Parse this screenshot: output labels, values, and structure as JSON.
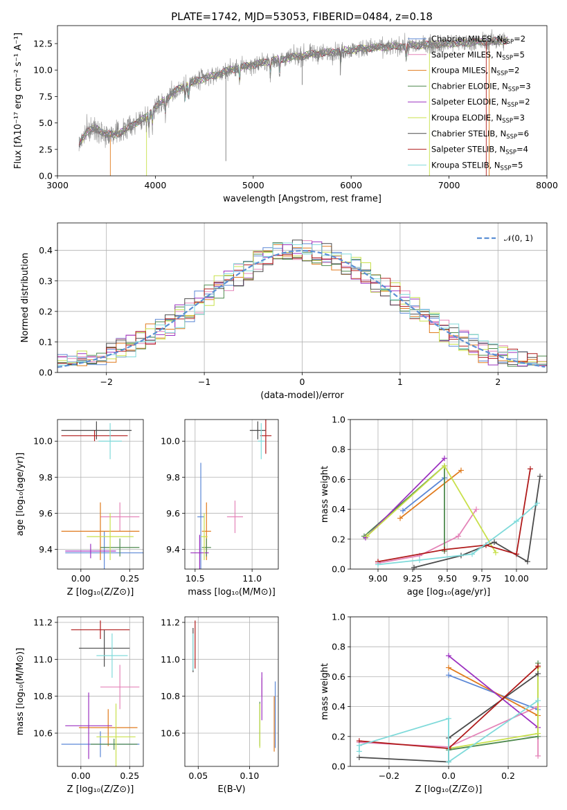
{
  "figure_title": "PLATE=1742, MJD=53053, FIBERID=0484, z=0.18",
  "colors": {
    "Chabrier MILES": "#5b87d6",
    "Salpeter MILES": "#e484b8",
    "Kroupa MILES": "#e07a1c",
    "Chabrier ELODIE": "#4f8a4f",
    "Salpeter ELODIE": "#9b30c0",
    "Kroupa ELODIE": "#c8e04a",
    "Chabrier STELIB": "#4a4a4a",
    "Salpeter STELIB": "#b01a1a",
    "Kroupa STELIB": "#7fdada",
    "normal": "#5b8fd4",
    "data": "#808080"
  },
  "chart_data": [
    {
      "id": "spectrum",
      "type": "line",
      "title": "PLATE=1742, MJD=53053, FIBERID=0484, z=0.18",
      "xlabel": "wavelength [Angstrom, rest frame]",
      "ylabel": "Flux [fλ10⁻¹⁷ erg cm⁻² s⁻¹ A⁻¹]",
      "xlim": [
        3000,
        8000
      ],
      "ylim": [
        0,
        14.2
      ],
      "xticks": [
        "3000",
        "4000",
        "5000",
        "6000",
        "7000",
        "8000"
      ],
      "yticks": [
        "0.0",
        "2.5",
        "5.0",
        "7.5",
        "10.0",
        "12.5"
      ],
      "legend_position": "top-right",
      "continuum_points": {
        "x": [
          3220,
          3300,
          3400,
          3500,
          3600,
          3700,
          3800,
          3900,
          4000,
          4100,
          4200,
          4300,
          4400,
          4600,
          4800,
          5000,
          5200,
          5400,
          5600,
          5800,
          6000,
          6200,
          6400,
          6600,
          6800,
          7000,
          7200,
          7400,
          7600
        ],
        "y": [
          3.0,
          4.2,
          4.5,
          3.9,
          3.9,
          4.4,
          5.0,
          5.5,
          6.5,
          7.2,
          8.0,
          8.5,
          8.9,
          9.5,
          10.1,
          10.5,
          10.9,
          11.2,
          11.5,
          11.7,
          11.9,
          12.1,
          12.2,
          12.3,
          12.4,
          12.5,
          12.6,
          12.7,
          12.8
        ]
      },
      "legend": [
        {
          "model": "Chabrier MILES",
          "label": "Chabrier MILES, N",
          "nssp": "=2"
        },
        {
          "model": "Salpeter MILES",
          "label": "Salpeter MILES, N",
          "nssp": "=5"
        },
        {
          "model": "Kroupa MILES",
          "label": "Kroupa MILES, N",
          "nssp": "=2"
        },
        {
          "model": "Chabrier ELODIE",
          "label": "Chabrier ELODIE, N",
          "nssp": "=3"
        },
        {
          "model": "Salpeter ELODIE",
          "label": "Salpeter ELODIE, N",
          "nssp": "=2"
        },
        {
          "model": "Kroupa ELODIE",
          "label": "Kroupa ELODIE, N",
          "nssp": "=3"
        },
        {
          "model": "Chabrier STELIB",
          "label": "Chabrier STELIB, N",
          "nssp": "=6"
        },
        {
          "model": "Salpeter STELIB",
          "label": "Salpeter STELIB, N",
          "nssp": "=4"
        },
        {
          "model": "Kroupa STELIB",
          "label": "Kroupa STELIB, N",
          "nssp": "=5"
        }
      ],
      "legend_subscript": "SSP"
    },
    {
      "id": "residuals",
      "type": "bar",
      "xlabel": "(data-model)/error",
      "ylabel": "Normed distribution",
      "xlim": [
        -2.5,
        2.5
      ],
      "ylim": [
        0,
        0.49
      ],
      "xticks": [
        "−2",
        "−1",
        "0",
        "1",
        "2"
      ],
      "yticks": [
        "0.0",
        "0.1",
        "0.2",
        "0.3",
        "0.4"
      ],
      "legend_label": "𝒩(0, 1)",
      "legend_position": "top-right",
      "bin_width": 0.1
    },
    {
      "id": "age-vs-Z",
      "type": "scatter",
      "xlabel": "Z [log₁₀(Z/Z⊙)]",
      "ylabel": "age  [log₁₀(age/yr)]",
      "xlim": [
        -0.12,
        0.32
      ],
      "ylim": [
        9.29,
        10.12
      ],
      "xticks": [
        "0.00",
        "0.25"
      ],
      "yticks": [
        "9.4",
        "9.6",
        "9.8",
        "10.0"
      ],
      "points": [
        {
          "model": "Chabrier MILES",
          "x": 0.12,
          "y": 9.38,
          "xerr": 0.2,
          "yerr": 0.12
        },
        {
          "model": "Salpeter MILES",
          "x": 0.2,
          "y": 9.58,
          "xerr": 0.1,
          "yerr": 0.08
        },
        {
          "model": "Kroupa MILES",
          "x": 0.1,
          "y": 9.5,
          "xerr": 0.2,
          "yerr": 0.16
        },
        {
          "model": "Chabrier ELODIE",
          "x": 0.2,
          "y": 9.41,
          "xerr": 0.1,
          "yerr": 0.05
        },
        {
          "model": "Salpeter ELODIE",
          "x": 0.05,
          "y": 9.39,
          "xerr": 0.13,
          "yerr": 0.04
        },
        {
          "model": "Kroupa ELODIE",
          "x": 0.15,
          "y": 9.47,
          "xerr": 0.12,
          "yerr": 0.13
        },
        {
          "model": "Chabrier STELIB",
          "x": 0.08,
          "y": 10.06,
          "xerr": 0.18,
          "yerr": 0.05
        },
        {
          "model": "Salpeter STELIB",
          "x": 0.07,
          "y": 10.03,
          "xerr": 0.17,
          "yerr": 0.03
        },
        {
          "model": "Kroupa STELIB",
          "x": 0.15,
          "y": 10.0,
          "xerr": 0.06,
          "yerr": 0.1
        }
      ]
    },
    {
      "id": "age-vs-mass",
      "type": "scatter",
      "xlabel": "mass [log₁₀(M/M⊙)]",
      "ylabel": "",
      "xlim": [
        10.41,
        11.23
      ],
      "ylim": [
        9.29,
        10.12
      ],
      "xticks": [
        "10.5",
        "11.0"
      ],
      "yticks": [
        "9.4",
        "9.6",
        "9.8",
        "10.0"
      ],
      "points": [
        {
          "model": "Chabrier MILES",
          "x": 10.55,
          "y": 9.58,
          "xerr": 0.03,
          "yerr": 0.3
        },
        {
          "model": "Salpeter MILES",
          "x": 10.85,
          "y": 9.58,
          "xerr": 0.07,
          "yerr": 0.09
        },
        {
          "model": "Kroupa MILES",
          "x": 10.6,
          "y": 9.5,
          "xerr": 0.04,
          "yerr": 0.16
        },
        {
          "model": "Chabrier ELODIE",
          "x": 10.6,
          "y": 9.41,
          "xerr": 0.04,
          "yerr": 0.05
        },
        {
          "model": "Salpeter ELODIE",
          "x": 10.54,
          "y": 9.38,
          "xerr": 0.08,
          "yerr": 0.1
        },
        {
          "model": "Kroupa ELODIE",
          "x": 10.58,
          "y": 9.47,
          "xerr": 0.03,
          "yerr": 0.13
        },
        {
          "model": "Chabrier STELIB",
          "x": 11.05,
          "y": 10.06,
          "xerr": 0.07,
          "yerr": 0.05
        },
        {
          "model": "Salpeter STELIB",
          "x": 11.12,
          "y": 10.03,
          "xerr": 0.05,
          "yerr": 0.1
        },
        {
          "model": "Kroupa STELIB",
          "x": 11.08,
          "y": 10.0,
          "xerr": 0.03,
          "yerr": 0.1
        }
      ]
    },
    {
      "id": "weight-vs-age",
      "type": "line",
      "xlabel": "age  [log₁₀(age/yr)]",
      "ylabel": "mass weight",
      "xlim": [
        8.8,
        10.22
      ],
      "ylim": [
        0,
        1.0
      ],
      "xticks": [
        "9.00",
        "9.25",
        "9.50",
        "9.75",
        "10.00"
      ],
      "yticks": [
        "0.0",
        "0.2",
        "0.4",
        "0.6",
        "0.8",
        "1.0"
      ],
      "series": [
        {
          "model": "Chabrier MILES",
          "x": [
            9.18,
            9.48
          ],
          "y": [
            0.39,
            0.61
          ]
        },
        {
          "model": "Salpeter MILES",
          "x": [
            9.0,
            9.3,
            9.58,
            9.71
          ],
          "y": [
            0.04,
            0.09,
            0.22,
            0.4
          ]
        },
        {
          "model": "Kroupa MILES",
          "x": [
            9.16,
            9.6
          ],
          "y": [
            0.34,
            0.66
          ]
        },
        {
          "model": "Chabrier ELODIE",
          "x": [
            8.9,
            9.48,
            9.48
          ],
          "y": [
            0.22,
            0.69,
            0.12
          ]
        },
        {
          "model": "Salpeter ELODIE",
          "x": [
            8.91,
            9.48
          ],
          "y": [
            0.21,
            0.74
          ]
        },
        {
          "model": "Kroupa ELODIE",
          "x": [
            8.92,
            9.48,
            9.85
          ],
          "y": [
            0.22,
            0.69,
            0.11
          ]
        },
        {
          "model": "Chabrier STELIB",
          "x": [
            9.26,
            9.6,
            9.84,
            10.08,
            10.17
          ],
          "y": [
            0.01,
            0.09,
            0.18,
            0.05,
            0.62
          ]
        },
        {
          "model": "Salpeter STELIB",
          "x": [
            9.0,
            9.48,
            9.78,
            10.0,
            10.1
          ],
          "y": [
            0.05,
            0.13,
            0.16,
            0.1,
            0.67
          ]
        },
        {
          "model": "Kroupa STELIB",
          "x": [
            9.0,
            9.3,
            9.68,
            10.0,
            10.15
          ],
          "y": [
            0.03,
            0.06,
            0.1,
            0.32,
            0.44
          ]
        }
      ]
    },
    {
      "id": "mass-vs-Z",
      "type": "scatter",
      "xlabel": "Z [log₁₀(Z/Z⊙)]",
      "ylabel": "mass [log₁₀(M/M⊙)]",
      "xlim": [
        -0.12,
        0.32
      ],
      "ylim": [
        10.42,
        11.23
      ],
      "xticks": [
        "0.00",
        "0.25"
      ],
      "yticks": [
        "10.6",
        "10.8",
        "11.0",
        "11.2"
      ],
      "points": [
        {
          "model": "Chabrier MILES",
          "x": 0.1,
          "y": 10.54,
          "xerr": 0.2,
          "yerr": 0.07
        },
        {
          "model": "Salpeter MILES",
          "x": 0.2,
          "y": 10.85,
          "xerr": 0.1,
          "yerr": 0.12
        },
        {
          "model": "Kroupa MILES",
          "x": 0.14,
          "y": 10.63,
          "xerr": 0.15,
          "yerr": 0.1
        },
        {
          "model": "Chabrier ELODIE",
          "x": 0.17,
          "y": 10.54,
          "xerr": 0.12,
          "yerr": 0.03
        },
        {
          "model": "Salpeter ELODIE",
          "x": 0.04,
          "y": 10.64,
          "xerr": 0.12,
          "yerr": 0.18
        },
        {
          "model": "Kroupa ELODIE",
          "x": 0.18,
          "y": 10.58,
          "xerr": 0.1,
          "yerr": 0.18
        },
        {
          "model": "Chabrier STELIB",
          "x": 0.12,
          "y": 11.06,
          "xerr": 0.13,
          "yerr": 0.1
        },
        {
          "model": "Salpeter STELIB",
          "x": 0.1,
          "y": 11.16,
          "xerr": 0.15,
          "yerr": 0.05
        },
        {
          "model": "Kroupa STELIB",
          "x": 0.16,
          "y": 11.02,
          "xerr": 0.08,
          "yerr": 0.12
        }
      ]
    },
    {
      "id": "mass-vs-EBV",
      "type": "scatter",
      "xlabel": "E(B-V)",
      "ylabel": "",
      "xlim": [
        0.037,
        0.128
      ],
      "ylim": [
        10.42,
        11.23
      ],
      "xticks": [
        "0.05",
        "0.10"
      ],
      "yticks": [
        "10.6",
        "10.8",
        "11.0",
        "11.2"
      ],
      "points": [
        {
          "model": "Chabrier MILES",
          "x": 0.125,
          "y": 10.7,
          "xerr": 0.0,
          "yerr": 0.18
        },
        {
          "model": "Salpeter MILES",
          "x": 0.112,
          "y": 10.85,
          "xerr": 0.0,
          "yerr": 0.05
        },
        {
          "model": "Kroupa MILES",
          "x": 0.124,
          "y": 10.65,
          "xerr": 0.0,
          "yerr": 0.15
        },
        {
          "model": "Chabrier ELODIE",
          "x": 0.11,
          "y": 10.65,
          "xerr": 0.0,
          "yerr": 0.12
        },
        {
          "model": "Salpeter ELODIE",
          "x": 0.112,
          "y": 10.8,
          "xerr": 0.0,
          "yerr": 0.13
        },
        {
          "model": "Kroupa ELODIE",
          "x": 0.11,
          "y": 10.64,
          "xerr": 0.0,
          "yerr": 0.12
        },
        {
          "model": "Chabrier STELIB",
          "x": 0.045,
          "y": 11.05,
          "xerr": 0.0,
          "yerr": 0.12
        },
        {
          "model": "Salpeter STELIB",
          "x": 0.047,
          "y": 11.08,
          "xerr": 0.0,
          "yerr": 0.13
        },
        {
          "model": "Kroupa STELIB",
          "x": 0.045,
          "y": 11.04,
          "xerr": 0.0,
          "yerr": 0.1
        }
      ]
    },
    {
      "id": "weight-vs-Z",
      "type": "line",
      "xlabel": "Z [log₁₀(Z/Z⊙)]",
      "ylabel": "mass weight",
      "xlim": [
        -0.33,
        0.33
      ],
      "ylim": [
        0,
        1.0
      ],
      "xticks": [
        "−0.2",
        "0.0",
        "0.2"
      ],
      "yticks": [
        "0.0",
        "0.2",
        "0.4",
        "0.6",
        "0.8",
        "1.0"
      ],
      "series": [
        {
          "model": "Chabrier MILES",
          "x": [
            0.0,
            0.3
          ],
          "y": [
            0.61,
            0.38
          ]
        },
        {
          "model": "Salpeter MILES",
          "x": [
            -0.3,
            0.0,
            0.3,
            0.3
          ],
          "y": [
            0.16,
            0.13,
            0.4,
            0.07
          ]
        },
        {
          "model": "Kroupa MILES",
          "x": [
            0.0,
            0.3
          ],
          "y": [
            0.66,
            0.34
          ]
        },
        {
          "model": "Chabrier ELODIE",
          "x": [
            0.0,
            0.3,
            0.3
          ],
          "y": [
            0.11,
            0.2,
            0.69
          ]
        },
        {
          "model": "Salpeter ELODIE",
          "x": [
            0.0,
            0.3
          ],
          "y": [
            0.74,
            0.26
          ]
        },
        {
          "model": "Kroupa ELODIE",
          "x": [
            0.0,
            0.3,
            0.3
          ],
          "y": [
            0.12,
            0.22,
            0.66
          ]
        },
        {
          "model": "Chabrier STELIB",
          "x": [
            -0.3,
            0.0,
            0.0,
            0.3
          ],
          "y": [
            0.06,
            0.03,
            0.19,
            0.62
          ]
        },
        {
          "model": "Salpeter STELIB",
          "x": [
            -0.3,
            0.0,
            0.3
          ],
          "y": [
            0.17,
            0.12,
            0.67
          ]
        },
        {
          "model": "Kroupa STELIB",
          "x": [
            -0.3,
            -0.3,
            0.0,
            0.0,
            0.3
          ],
          "y": [
            0.1,
            0.14,
            0.32,
            0.03,
            0.44
          ]
        }
      ]
    }
  ]
}
